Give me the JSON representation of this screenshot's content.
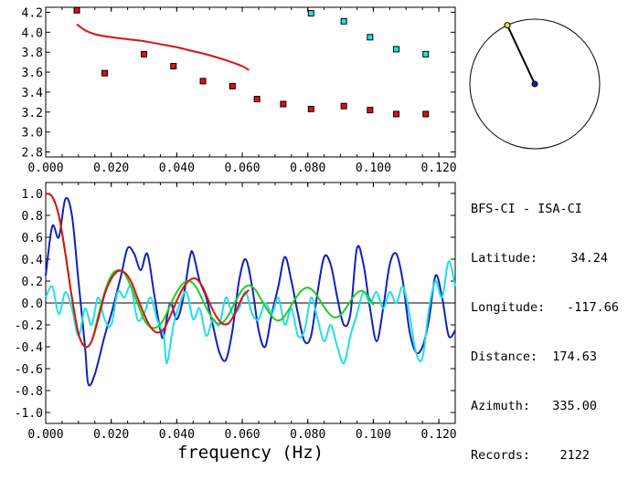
{
  "info": {
    "title": "BFS-CI - ISA-CI",
    "rows": [
      {
        "label": "Latitude:",
        "value": "34.24"
      },
      {
        "label": "Longitude:",
        "value": "-117.66"
      },
      {
        "label": "Distance:",
        "value": "174.63"
      },
      {
        "label": "Azimuth:",
        "value": "335.00"
      },
      {
        "label": "Records:",
        "value": "2122"
      }
    ]
  },
  "colors": {
    "red": "#dd1111",
    "cyan": "#22e0e0",
    "blue": "#1020c0",
    "green": "#22cc22",
    "dot_yellow": "#e8e020",
    "dot_blue": "#1020c0"
  },
  "azimuth_deg": 335.0,
  "chart_data": [
    {
      "type": "scatter",
      "title": "",
      "xlabel": "",
      "ylabel": "",
      "xlim": [
        0.0,
        0.125
      ],
      "ylim": [
        2.75,
        4.25
      ],
      "xticks": [
        "0.000",
        "0.020",
        "0.040",
        "0.060",
        "0.080",
        "0.100",
        "0.120"
      ],
      "yticks": [
        "2.8",
        "3.0",
        "3.2",
        "3.4",
        "3.6",
        "3.8",
        "4.0",
        "4.2"
      ],
      "series": [
        {
          "color": "red",
          "kind": "points",
          "x": [
            0.0095,
            0.018,
            0.03,
            0.039,
            0.048,
            0.057,
            0.0645,
            0.0725,
            0.081,
            0.091,
            0.099,
            0.107,
            0.116
          ],
          "y": [
            4.22,
            3.59,
            3.78,
            3.66,
            3.51,
            3.46,
            3.33,
            3.28,
            3.23,
            3.26,
            3.22,
            3.18,
            3.18
          ]
        },
        {
          "color": "cyan",
          "kind": "points",
          "x": [
            0.081,
            0.091,
            0.099,
            0.107,
            0.116
          ],
          "y": [
            4.19,
            4.11,
            3.95,
            3.83,
            3.78
          ]
        },
        {
          "color": "red",
          "kind": "line",
          "x": [
            0.0095,
            0.012,
            0.015,
            0.02,
            0.025,
            0.03,
            0.035,
            0.04,
            0.045,
            0.05,
            0.055,
            0.06,
            0.062
          ],
          "y": [
            4.08,
            4.02,
            3.98,
            3.95,
            3.93,
            3.91,
            3.88,
            3.85,
            3.81,
            3.77,
            3.72,
            3.66,
            3.62
          ]
        }
      ]
    },
    {
      "type": "line",
      "title": "",
      "xlabel": "frequency (Hz)",
      "ylabel": "",
      "xlim": [
        0.0,
        0.125
      ],
      "ylim": [
        -1.1,
        1.1
      ],
      "xticks": [
        "0.000",
        "0.020",
        "0.040",
        "0.060",
        "0.080",
        "0.100",
        "0.120"
      ],
      "yticks": [
        "1.0",
        "0.8",
        "0.6",
        "0.4",
        "0.2",
        "0.0",
        "-0.2",
        "-0.4",
        "-0.6",
        "-0.8",
        "-1.0"
      ],
      "series": [
        {
          "color": "blue",
          "x": [
            0.0,
            0.002,
            0.004,
            0.006,
            0.008,
            0.01,
            0.012,
            0.013,
            0.015,
            0.018,
            0.02,
            0.023,
            0.025,
            0.027,
            0.029,
            0.031,
            0.033,
            0.035,
            0.036,
            0.038,
            0.04,
            0.042,
            0.044,
            0.045,
            0.047,
            0.049,
            0.051,
            0.053,
            0.055,
            0.057,
            0.059,
            0.061,
            0.063,
            0.065,
            0.067,
            0.069,
            0.071,
            0.073,
            0.075,
            0.077,
            0.079,
            0.081,
            0.083,
            0.085,
            0.087,
            0.089,
            0.091,
            0.093,
            0.095,
            0.097,
            0.099,
            0.101,
            0.103,
            0.105,
            0.107,
            0.109,
            0.111,
            0.113,
            0.115,
            0.117,
            0.119,
            0.121,
            0.123,
            0.125
          ],
          "y": [
            0.25,
            0.7,
            0.6,
            0.95,
            0.8,
            0.2,
            -0.4,
            -0.74,
            -0.65,
            -0.3,
            -0.1,
            0.25,
            0.5,
            0.45,
            0.3,
            0.45,
            0.1,
            -0.25,
            -0.3,
            0.0,
            -0.15,
            0.05,
            0.42,
            0.45,
            0.2,
            0.05,
            -0.2,
            -0.45,
            -0.52,
            -0.25,
            0.2,
            0.4,
            0.15,
            -0.25,
            -0.4,
            -0.1,
            0.15,
            0.42,
            0.2,
            -0.1,
            -0.35,
            -0.3,
            0.1,
            0.42,
            0.35,
            0.05,
            -0.2,
            -0.1,
            0.5,
            0.35,
            -0.05,
            -0.35,
            -0.05,
            0.35,
            0.45,
            0.2,
            -0.25,
            -0.45,
            -0.4,
            -0.15,
            0.25,
            0.05,
            -0.3,
            -0.25
          ]
        },
        {
          "color": "cyan",
          "x": [
            0.0,
            0.002,
            0.004,
            0.006,
            0.008,
            0.01,
            0.012,
            0.014,
            0.016,
            0.018,
            0.02,
            0.022,
            0.024,
            0.026,
            0.028,
            0.03,
            0.032,
            0.034,
            0.036,
            0.037,
            0.039,
            0.041,
            0.043,
            0.045,
            0.047,
            0.049,
            0.051,
            0.053,
            0.055,
            0.057,
            0.059,
            0.061,
            0.063,
            0.065,
            0.067,
            0.069,
            0.071,
            0.073,
            0.075,
            0.077,
            0.079,
            0.081,
            0.083,
            0.085,
            0.087,
            0.089,
            0.091,
            0.093,
            0.095,
            0.097,
            0.099,
            0.101,
            0.103,
            0.105,
            0.107,
            0.109,
            0.111,
            0.113,
            0.115,
            0.117,
            0.119,
            0.121,
            0.123,
            0.125
          ],
          "y": [
            0.05,
            0.15,
            -0.1,
            0.1,
            -0.05,
            -0.3,
            -0.05,
            -0.2,
            0.05,
            -0.15,
            -0.2,
            0.1,
            0.05,
            0.15,
            -0.15,
            -0.1,
            0.05,
            -0.15,
            -0.3,
            -0.55,
            -0.2,
            0.0,
            0.1,
            -0.15,
            -0.05,
            -0.3,
            -0.15,
            -0.2,
            0.05,
            -0.1,
            -0.05,
            0.1,
            -0.1,
            -0.15,
            0.0,
            -0.1,
            0.05,
            -0.2,
            -0.05,
            -0.3,
            -0.25,
            0.05,
            -0.15,
            -0.35,
            -0.2,
            -0.4,
            -0.55,
            -0.3,
            -0.1,
            0.1,
            0.0,
            0.1,
            -0.05,
            0.1,
            0.0,
            0.15,
            -0.1,
            -0.45,
            -0.5,
            -0.05,
            0.2,
            0.05,
            0.38,
            0.15
          ]
        },
        {
          "color": "green",
          "x": [
            0.0,
            0.002,
            0.004,
            0.006,
            0.008,
            0.01,
            0.012,
            0.014,
            0.016,
            0.018,
            0.02,
            0.022,
            0.024,
            0.026,
            0.028,
            0.03,
            0.032,
            0.034,
            0.036,
            0.038,
            0.04,
            0.042,
            0.044,
            0.046,
            0.048,
            0.05,
            0.052,
            0.054,
            0.056,
            0.058,
            0.06,
            0.062,
            0.064,
            0.066,
            0.068,
            0.07,
            0.072,
            0.074,
            0.076,
            0.078,
            0.08,
            0.082,
            0.084,
            0.086,
            0.088,
            0.09,
            0.092,
            0.094,
            0.096,
            0.098,
            0.1
          ],
          "y": [
            1.0,
            0.97,
            0.8,
            0.45,
            0.05,
            -0.28,
            -0.4,
            -0.35,
            -0.12,
            0.1,
            0.25,
            0.3,
            0.27,
            0.15,
            0.0,
            -0.15,
            -0.22,
            -0.22,
            -0.15,
            -0.02,
            0.1,
            0.18,
            0.2,
            0.14,
            0.02,
            -0.1,
            -0.18,
            -0.18,
            -0.1,
            0.02,
            0.12,
            0.16,
            0.12,
            0.02,
            -0.08,
            -0.15,
            -0.15,
            -0.07,
            0.03,
            0.11,
            0.14,
            0.1,
            0.01,
            -0.08,
            -0.13,
            -0.11,
            -0.03,
            0.06,
            0.11,
            0.08,
            -0.02
          ]
        },
        {
          "color": "red",
          "x": [
            0.0,
            0.002,
            0.004,
            0.006,
            0.008,
            0.01,
            0.012,
            0.014,
            0.016,
            0.018,
            0.02,
            0.022,
            0.024,
            0.026,
            0.028,
            0.03,
            0.032,
            0.034,
            0.036,
            0.038,
            0.04,
            0.042,
            0.044,
            0.046,
            0.048,
            0.05,
            0.052,
            0.054,
            0.056,
            0.058,
            0.06,
            0.062
          ],
          "y": [
            1.0,
            0.97,
            0.8,
            0.45,
            0.05,
            -0.28,
            -0.4,
            -0.35,
            -0.15,
            0.08,
            0.22,
            0.29,
            0.28,
            0.2,
            0.05,
            -0.1,
            -0.22,
            -0.27,
            -0.24,
            -0.12,
            0.02,
            0.14,
            0.21,
            0.22,
            0.14,
            0.0,
            -0.12,
            -0.19,
            -0.18,
            -0.08,
            0.05,
            0.12
          ]
        }
      ]
    }
  ]
}
